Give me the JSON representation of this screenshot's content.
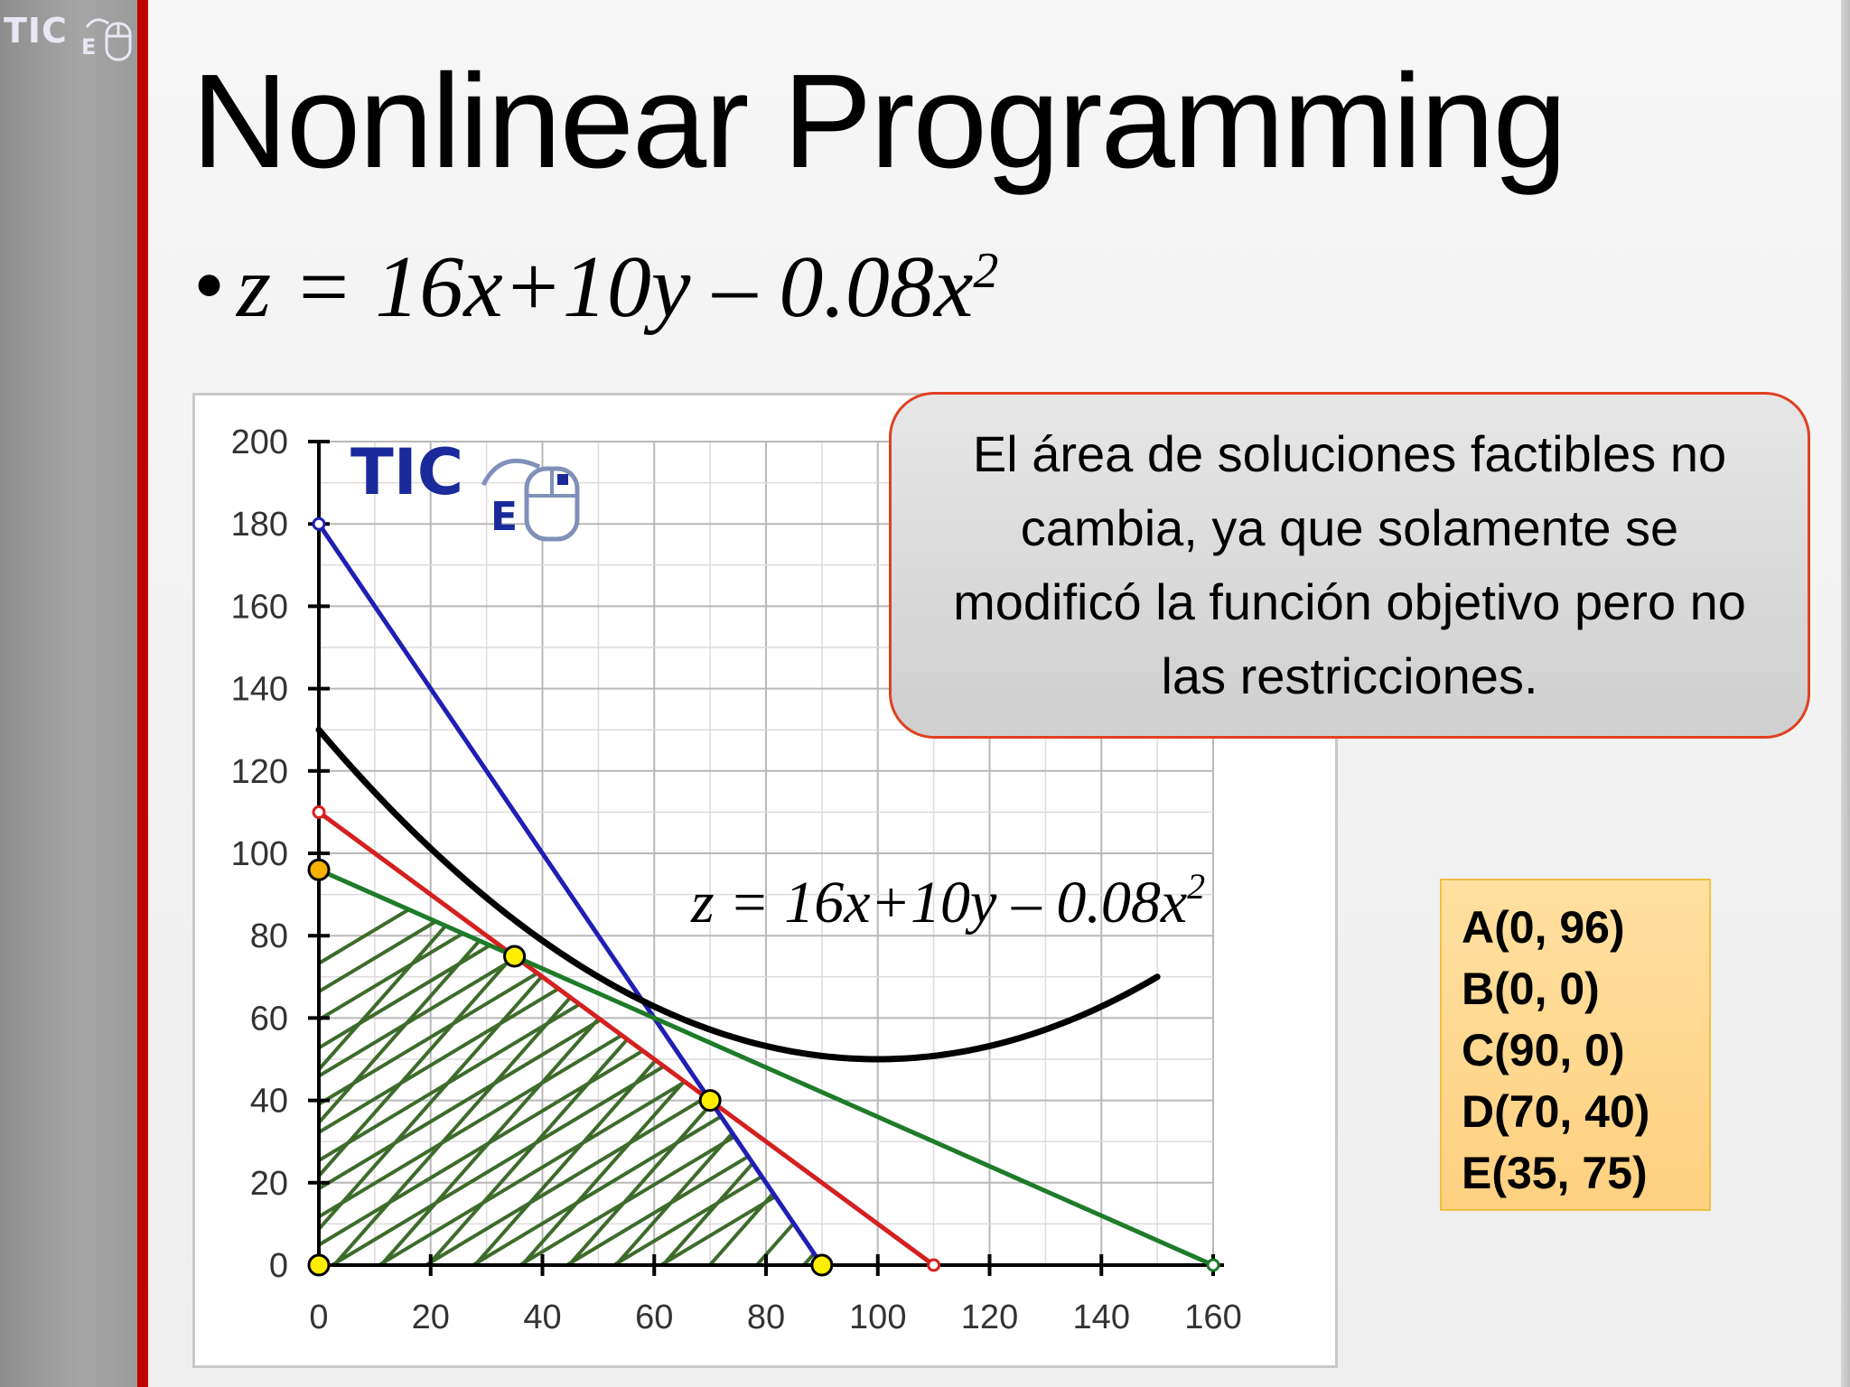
{
  "slide": {
    "corner_logo": "TIC",
    "corner_logo_sub": "E",
    "title": "Nonlinear Programming",
    "bullet": "•",
    "formula": {
      "main": "z = 16x+10y – 0.08x",
      "exponent": "2"
    },
    "callout": "El área de soluciones factibles no cambia, ya que solamente se modificó la función objetivo pero no las restricciones.",
    "points": [
      "A(0, 96)",
      "B(0, 0)",
      "C(90, 0)",
      "D(70, 40)",
      "E(35, 75)"
    ]
  },
  "chart_data": {
    "type": "line",
    "xlim": [
      0,
      160
    ],
    "ylim": [
      0,
      200
    ],
    "x_ticks": [
      0,
      20,
      40,
      60,
      80,
      100,
      120,
      140,
      160
    ],
    "y_ticks": [
      0,
      20,
      40,
      60,
      80,
      100,
      120,
      140,
      160,
      180,
      200
    ],
    "grid": true,
    "watermark": {
      "text": "TIC",
      "sub": "E"
    },
    "curve_label": {
      "main": "z = 16x+10y – 0.08x",
      "exponent": "2"
    },
    "series": [
      {
        "color": "#1f1fb4",
        "points": [
          [
            0,
            180
          ],
          [
            90,
            0
          ]
        ]
      },
      {
        "color": "#d42020",
        "points": [
          [
            0,
            110
          ],
          [
            110,
            0
          ]
        ]
      },
      {
        "color": "#1e7b2a",
        "points": [
          [
            0,
            96
          ],
          [
            160,
            0
          ]
        ]
      },
      {
        "color": "#000000",
        "function": "objective",
        "x_range": [
          0,
          150
        ],
        "expr": "y = 130 - 1.6x + 0.008x^2"
      }
    ],
    "feasible_region": [
      [
        0,
        96
      ],
      [
        35,
        75
      ],
      [
        70,
        40
      ],
      [
        90,
        0
      ],
      [
        0,
        0
      ]
    ],
    "vertices": [
      {
        "label": "A",
        "x": 0,
        "y": 96,
        "color": "#f5b000"
      },
      {
        "label": "B",
        "x": 0,
        "y": 0,
        "color": "#ffee00"
      },
      {
        "label": "C",
        "x": 90,
        "y": 0,
        "color": "#ffee00"
      },
      {
        "label": "D",
        "x": 70,
        "y": 40,
        "color": "#ffee00"
      },
      {
        "label": "E",
        "x": 35,
        "y": 75,
        "color": "#ffee00"
      }
    ]
  }
}
